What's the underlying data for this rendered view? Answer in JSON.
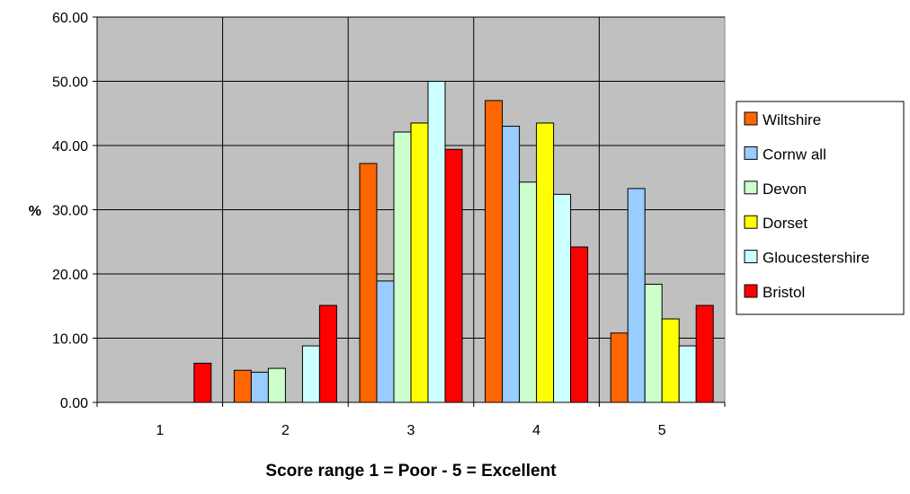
{
  "chart_data": {
    "type": "bar",
    "categories": [
      "1",
      "2",
      "3",
      "4",
      "5"
    ],
    "xlabel": "Score range 1 = Poor - 5 = Excellent",
    "ylabel": "%",
    "ylim": [
      0,
      60
    ],
    "yticks": [
      0,
      10,
      20,
      30,
      40,
      50,
      60
    ],
    "ytick_labels": [
      "0.00",
      "10.00",
      "20.00",
      "30.00",
      "40.00",
      "50.00",
      "60.00"
    ],
    "grid": true,
    "plot_background": "#c0c0c0",
    "legend_position": "right",
    "series": [
      {
        "name": "Wiltshire",
        "color": "#ff6600",
        "values": [
          0,
          5.0,
          37.2,
          47.0,
          10.8
        ]
      },
      {
        "name": "Cornw all",
        "color": "#99ccff",
        "values": [
          0,
          4.7,
          18.9,
          43.0,
          33.3
        ]
      },
      {
        "name": "Devon",
        "color": "#ccffcc",
        "values": [
          0,
          5.3,
          42.1,
          34.3,
          18.4
        ]
      },
      {
        "name": "Dorset",
        "color": "#ffff00",
        "values": [
          0,
          0,
          43.5,
          43.5,
          13.0
        ]
      },
      {
        "name": "Gloucestershire",
        "color": "#ccffff",
        "values": [
          0,
          8.8,
          50.0,
          32.4,
          8.8
        ]
      },
      {
        "name": "Bristol",
        "color": "#ff0000",
        "values": [
          6.1,
          15.1,
          39.4,
          24.2,
          15.1
        ]
      }
    ]
  }
}
